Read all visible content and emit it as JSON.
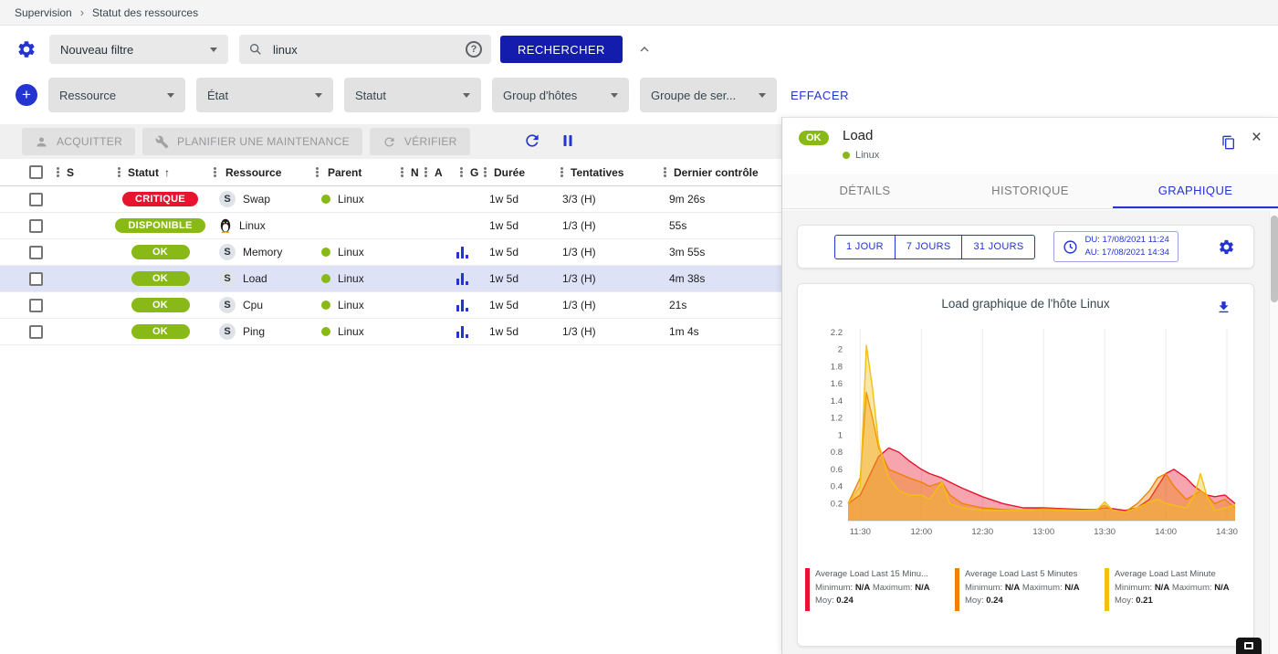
{
  "colors": {
    "accent": "#2334d0",
    "primary_button": "#141cae",
    "critical": "#e8132e",
    "success": "#88b917",
    "selected_row": "#dde2f6"
  },
  "icons": {
    "breadcrumb_separator": "›",
    "sort_ascending": "↑",
    "close": "×",
    "plus": "+",
    "help": "?"
  },
  "breadcrumb": {
    "items": [
      "Supervision",
      "Statut des ressources"
    ]
  },
  "filter_bar": {
    "filter_select": "Nouveau filtre",
    "search_value": "linux",
    "search_button": "RECHERCHER"
  },
  "criteria_bar": {
    "dropdowns": [
      "Ressource",
      "État",
      "Statut",
      "Group d'hôtes",
      "Groupe de ser..."
    ],
    "clear_label": "EFFACER"
  },
  "toolbar": {
    "acknowledge": "ACQUITTER",
    "maintenance": "PLANIFIER UNE MAINTENANCE",
    "check": "VÉRIFIER"
  },
  "table": {
    "service_letter": "S",
    "columns": [
      {
        "key": "s",
        "label": "S"
      },
      {
        "key": "statut",
        "label": "Statut",
        "sorted": true
      },
      {
        "key": "ressource",
        "label": "Ressource"
      },
      {
        "key": "parent",
        "label": "Parent"
      },
      {
        "key": "n",
        "label": "N"
      },
      {
        "key": "a",
        "label": "A"
      },
      {
        "key": "g",
        "label": "G"
      },
      {
        "key": "duree",
        "label": "Durée"
      },
      {
        "key": "tent",
        "label": "Tentatives"
      },
      {
        "key": "dernier",
        "label": "Dernier contrôle"
      }
    ],
    "rows": [
      {
        "status": "CRITIQUE",
        "status_color": "#e8132e",
        "kind": "service",
        "resource": "Swap",
        "parent": "Linux",
        "has_graph": false,
        "duration": "1w 5d",
        "tries": "3/3 (H)",
        "last_check": "9m 26s",
        "selected": false
      },
      {
        "status": "DISPONIBLE",
        "status_color": "#88b917",
        "kind": "host",
        "resource": "Linux",
        "parent": "",
        "has_graph": false,
        "duration": "1w 5d",
        "tries": "1/3 (H)",
        "last_check": "55s",
        "selected": false
      },
      {
        "status": "OK",
        "status_color": "#88b917",
        "kind": "service",
        "resource": "Memory",
        "parent": "Linux",
        "has_graph": true,
        "duration": "1w 5d",
        "tries": "1/3 (H)",
        "last_check": "3m 55s",
        "selected": false
      },
      {
        "status": "OK",
        "status_color": "#88b917",
        "kind": "service",
        "resource": "Load",
        "parent": "Linux",
        "has_graph": true,
        "duration": "1w 5d",
        "tries": "1/3 (H)",
        "last_check": "4m 38s",
        "selected": true
      },
      {
        "status": "OK",
        "status_color": "#88b917",
        "kind": "service",
        "resource": "Cpu",
        "parent": "Linux",
        "has_graph": true,
        "duration": "1w 5d",
        "tries": "1/3 (H)",
        "last_check": "21s",
        "selected": false
      },
      {
        "status": "OK",
        "status_color": "#88b917",
        "kind": "service",
        "resource": "Ping",
        "parent": "Linux",
        "has_graph": true,
        "duration": "1w 5d",
        "tries": "1/3 (H)",
        "last_check": "1m 4s",
        "selected": false
      }
    ]
  },
  "detail": {
    "status": "OK",
    "title": "Load",
    "parent": "Linux",
    "tabs": [
      "DÉTAILS",
      "HISTORIQUE",
      "GRAPHIQUE"
    ],
    "active_tab": 2,
    "time_buttons": [
      "1 JOUR",
      "7 JOURS",
      "31 JOURS"
    ],
    "from_label": "DU: 17/08/2021 11:24",
    "to_label": "AU: 17/08/2021 14:34"
  },
  "chart_data": {
    "type": "area",
    "title": "Load graphique de l'hôte Linux",
    "x_start": "11:24",
    "x_end": "14:34",
    "x_ticks": [
      "11:30",
      "12:00",
      "12:30",
      "13:00",
      "13:30",
      "14:00",
      "14:30"
    ],
    "x_tick_minutes": [
      6,
      36,
      66,
      96,
      126,
      156,
      186
    ],
    "x_range_minutes": [
      0,
      190
    ],
    "ylim": [
      0,
      2.2
    ],
    "y_tick_step": 0.2,
    "legend_labels": {
      "min": "Minimum:",
      "max": "Maximum:",
      "avg": "Moy:"
    },
    "x": [
      0,
      6,
      9,
      12,
      15,
      20,
      25,
      30,
      36,
      40,
      46,
      50,
      56,
      66,
      76,
      86,
      96,
      106,
      116,
      122,
      126,
      130,
      136,
      142,
      148,
      152,
      156,
      160,
      166,
      170,
      173,
      176,
      180,
      185,
      190
    ],
    "series": [
      {
        "name": "Average Load Last 15 Minu...",
        "color": "#e8132e",
        "min": "N/A",
        "max": "N/A",
        "avg": "0.24",
        "y": [
          0.2,
          0.3,
          0.45,
          0.6,
          0.75,
          0.85,
          0.8,
          0.7,
          0.6,
          0.55,
          0.5,
          0.45,
          0.38,
          0.28,
          0.2,
          0.15,
          0.15,
          0.14,
          0.13,
          0.13,
          0.15,
          0.14,
          0.12,
          0.15,
          0.25,
          0.4,
          0.55,
          0.6,
          0.5,
          0.4,
          0.35,
          0.3,
          0.28,
          0.3,
          0.2
        ]
      },
      {
        "name": "Average Load Last 5 Minutes",
        "color": "#ef8200",
        "min": "N/A",
        "max": "N/A",
        "avg": "0.24",
        "y": [
          0.2,
          0.5,
          1.5,
          1.2,
          0.85,
          0.6,
          0.55,
          0.5,
          0.45,
          0.4,
          0.45,
          0.3,
          0.2,
          0.15,
          0.13,
          0.12,
          0.14,
          0.13,
          0.12,
          0.13,
          0.18,
          0.12,
          0.1,
          0.2,
          0.35,
          0.5,
          0.55,
          0.4,
          0.25,
          0.3,
          0.35,
          0.3,
          0.2,
          0.25,
          0.15
        ]
      },
      {
        "name": "Average Load Last Minute",
        "color": "#f2c014",
        "min": "N/A",
        "max": "N/A",
        "avg": "0.21",
        "y": [
          0.2,
          0.4,
          2.05,
          1.55,
          0.9,
          0.5,
          0.35,
          0.3,
          0.3,
          0.25,
          0.45,
          0.2,
          0.15,
          0.12,
          0.12,
          0.12,
          0.13,
          0.12,
          0.12,
          0.12,
          0.22,
          0.12,
          0.1,
          0.15,
          0.22,
          0.25,
          0.2,
          0.18,
          0.15,
          0.3,
          0.55,
          0.3,
          0.12,
          0.15,
          0.18
        ]
      }
    ]
  }
}
